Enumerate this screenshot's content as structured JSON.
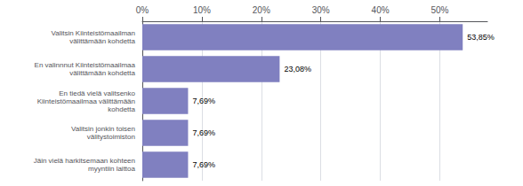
{
  "chart_data": {
    "type": "bar",
    "orientation": "horizontal",
    "categories": [
      "Jäin vielä harkitsemaan kohteen\nmyyntiin laittoa",
      "Valitsin jonkin toisen\nvälitystoimiston",
      "En tiedä vielä valitsenko\nKiinteistömaailmaa välittämään\nkohdetta",
      "En valinnnut Kiinteistömaailmaa\nvälittämään kohdetta",
      "Valitsin Kiinteistömaailman\nvälittämään kohdetta"
    ],
    "values": [
      7.69,
      7.69,
      7.69,
      23.08,
      53.85
    ],
    "value_labels": [
      "7,69%",
      "7,69%",
      "7,69%",
      "23,08%",
      "53,85%"
    ],
    "data_labels": true,
    "color": "#8080C0",
    "xlim": [
      0,
      58
    ],
    "xticks": [
      {
        "value": 0,
        "label": "0%"
      },
      {
        "value": 10,
        "label": "10%"
      },
      {
        "value": 20,
        "label": "20%"
      },
      {
        "value": 30,
        "label": "30%"
      },
      {
        "value": 40,
        "label": "40%"
      },
      {
        "value": 50,
        "label": "50%"
      }
    ],
    "grid": true
  }
}
